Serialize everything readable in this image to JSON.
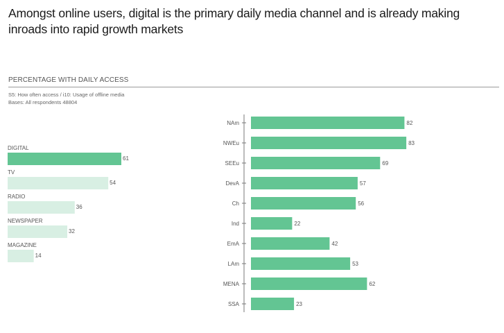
{
  "headline": "Amongst online users, digital is the primary daily media channel and is already making inroads into rapid growth markets",
  "section_title": "PERCENTAGE WITH DAILY ACCESS",
  "notes": {
    "line1": "S5: How often access / i10: Usage of offline media",
    "line2": "Bases:  All respondents 48804"
  },
  "colors": {
    "primary": "#63c593",
    "light": "#d8efe3",
    "axis": "#777777"
  },
  "chart_data": [
    {
      "type": "bar",
      "orientation": "horizontal",
      "title": "Percentage with daily access by media channel",
      "categories": [
        "DIGITAL",
        "TV",
        "RADIO",
        "NEWSPAPER",
        "MAGAZINE"
      ],
      "values": [
        61,
        54,
        36,
        32,
        14
      ],
      "highlight": [
        "DIGITAL"
      ],
      "xlim": [
        0,
        100
      ]
    },
    {
      "type": "bar",
      "orientation": "horizontal",
      "title": "Percentage with daily digital access by region",
      "categories": [
        "NAm",
        "NWEu",
        "SEEu",
        "DevA",
        "Ch",
        "Ind",
        "EmA",
        "LAm",
        "MENA",
        "SSA"
      ],
      "values": [
        82,
        83,
        69,
        57,
        56,
        22,
        42,
        53,
        62,
        23
      ],
      "xlim": [
        0,
        100
      ]
    }
  ]
}
